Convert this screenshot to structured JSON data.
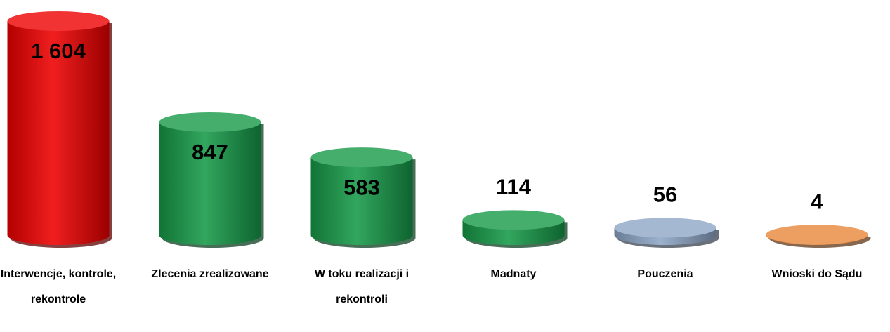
{
  "chart_data": {
    "type": "bar",
    "categories": [
      "Interwencje, kontrole, rekontrole",
      "Zlecenia zrealizowane",
      "W toku realizacji i rekontroli",
      "Madnaty",
      "Pouczenia",
      "Wnioski do Sądu"
    ],
    "values": [
      1604,
      847,
      583,
      114,
      56,
      4
    ],
    "value_labels": [
      "1 604",
      "847",
      "583",
      "114",
      "56",
      "4"
    ],
    "colors": [
      "#ee0000",
      "#169a48",
      "#169a48",
      "#169a48",
      "#8da6c6",
      "#e8873a"
    ]
  }
}
